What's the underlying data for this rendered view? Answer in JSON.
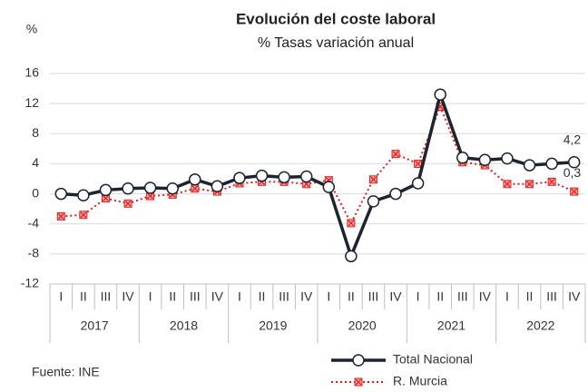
{
  "chart_data": {
    "type": "line",
    "title": "Evolución del coste laboral",
    "subtitle": "% Tasas variación anual",
    "y_unit": "%",
    "source": "Fuente: INE",
    "categories": [
      "I",
      "II",
      "III",
      "IV",
      "I",
      "II",
      "III",
      "IV",
      "I",
      "II",
      "III",
      "IV",
      "I",
      "II",
      "III",
      "IV",
      "I",
      "II",
      "III",
      "IV",
      "I",
      "II",
      "III",
      "IV"
    ],
    "years": [
      "2017",
      "2018",
      "2019",
      "2020",
      "2021",
      "2022"
    ],
    "ylim": [
      -12,
      16
    ],
    "yticks": [
      -12,
      -8,
      -4,
      0,
      4,
      8,
      12,
      16
    ],
    "series": [
      {
        "name": "Total Nacional",
        "color": "#1c2430",
        "values": [
          0,
          -0.2,
          0.5,
          0.7,
          0.8,
          0.7,
          1.9,
          1.0,
          2.1,
          2.4,
          2.2,
          2.3,
          0.9,
          -8.3,
          -1.0,
          0,
          1.4,
          13.2,
          4.8,
          4.5,
          4.7,
          3.8,
          4.0,
          4.2
        ],
        "value_labels": [
          null,
          null,
          null,
          null,
          null,
          null,
          null,
          null,
          null,
          null,
          null,
          null,
          null,
          null,
          null,
          null,
          null,
          null,
          null,
          null,
          null,
          null,
          null,
          "4,2"
        ]
      },
      {
        "name": "R. Murcia",
        "color": "#e0201f",
        "values": [
          -3.0,
          -2.8,
          -0.6,
          -1.3,
          -0.3,
          -0.1,
          0.7,
          0.3,
          1.4,
          1.6,
          1.6,
          1.3,
          1.8,
          -3.9,
          1.9,
          5.3,
          4.0,
          11.6,
          4.2,
          3.8,
          1.3,
          1.3,
          1.6,
          0.3
        ],
        "value_labels": [
          null,
          null,
          null,
          null,
          null,
          null,
          null,
          null,
          null,
          null,
          null,
          null,
          null,
          null,
          null,
          null,
          null,
          null,
          null,
          null,
          null,
          null,
          null,
          "0,3"
        ]
      }
    ],
    "grid": true
  }
}
